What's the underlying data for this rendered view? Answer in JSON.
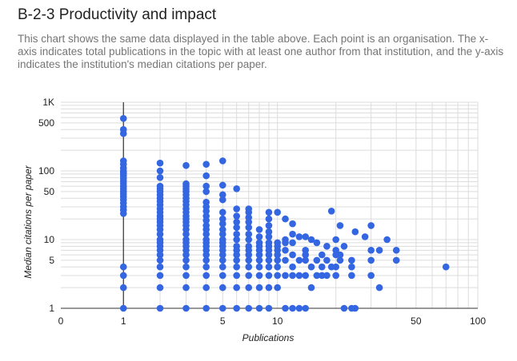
{
  "title": "B-2-3 Productivity and impact",
  "description": "This chart shows the same data displayed in the table above. Each point is an organisation. The x-axis indicates total publications in the topic with at least one author from that institution, and the y-axis indicates the institution's median citations per paper.",
  "chart_data": {
    "type": "scatter",
    "xlabel": "Publications",
    "ylabel": "Median citations per paper",
    "x_scale": "log",
    "y_scale": "log",
    "xlim": [
      0,
      100
    ],
    "ylim": [
      1,
      1000
    ],
    "x_ticks": [
      {
        "value": 0,
        "label": "0"
      },
      {
        "value": 1,
        "label": "1"
      },
      {
        "value": 5,
        "label": "5"
      },
      {
        "value": 10,
        "label": "10"
      },
      {
        "value": 50,
        "label": "50"
      },
      {
        "value": 100,
        "label": "100"
      }
    ],
    "y_ticks": [
      {
        "value": 1,
        "label": "1"
      },
      {
        "value": 5,
        "label": "5"
      },
      {
        "value": 10,
        "label": "10"
      },
      {
        "value": 50,
        "label": "50"
      },
      {
        "value": 100,
        "label": "100"
      },
      {
        "value": 500,
        "label": "500"
      },
      {
        "value": 1000,
        "label": "1K"
      }
    ],
    "grid": true,
    "point_color": "#3366e0",
    "points": [
      [
        1,
        580
      ],
      [
        1,
        400
      ],
      [
        1,
        350
      ],
      [
        1,
        140
      ],
      [
        1,
        125
      ],
      [
        1,
        110
      ],
      [
        1,
        100
      ],
      [
        1,
        95
      ],
      [
        1,
        90
      ],
      [
        1,
        85
      ],
      [
        1,
        78
      ],
      [
        1,
        72
      ],
      [
        1,
        66
      ],
      [
        1,
        60
      ],
      [
        1,
        55
      ],
      [
        1,
        50
      ],
      [
        1,
        46
      ],
      [
        1,
        42
      ],
      [
        1,
        38
      ],
      [
        1,
        34
      ],
      [
        1,
        30
      ],
      [
        1,
        27
      ],
      [
        1,
        24
      ],
      [
        1,
        4
      ],
      [
        1,
        3
      ],
      [
        1,
        2
      ],
      [
        1,
        1
      ],
      [
        2,
        130
      ],
      [
        2,
        100
      ],
      [
        2,
        80
      ],
      [
        2,
        60
      ],
      [
        2,
        55
      ],
      [
        2,
        50
      ],
      [
        2,
        45
      ],
      [
        2,
        40
      ],
      [
        2,
        36
      ],
      [
        2,
        32
      ],
      [
        2,
        28
      ],
      [
        2,
        25
      ],
      [
        2,
        22
      ],
      [
        2,
        20
      ],
      [
        2,
        18
      ],
      [
        2,
        16
      ],
      [
        2,
        14
      ],
      [
        2,
        12
      ],
      [
        2,
        10
      ],
      [
        2,
        9
      ],
      [
        2,
        8
      ],
      [
        2,
        7
      ],
      [
        2,
        6
      ],
      [
        2,
        5
      ],
      [
        2,
        4
      ],
      [
        2,
        3
      ],
      [
        2,
        2
      ],
      [
        2,
        1
      ],
      [
        3,
        120
      ],
      [
        3,
        65
      ],
      [
        3,
        60
      ],
      [
        3,
        55
      ],
      [
        3,
        50
      ],
      [
        3,
        45
      ],
      [
        3,
        40
      ],
      [
        3,
        36
      ],
      [
        3,
        32
      ],
      [
        3,
        28
      ],
      [
        3,
        25
      ],
      [
        3,
        22
      ],
      [
        3,
        20
      ],
      [
        3,
        18
      ],
      [
        3,
        16
      ],
      [
        3,
        14
      ],
      [
        3,
        12
      ],
      [
        3,
        10
      ],
      [
        3,
        9
      ],
      [
        3,
        8
      ],
      [
        3,
        7
      ],
      [
        3,
        6
      ],
      [
        3,
        5
      ],
      [
        3,
        4
      ],
      [
        3,
        3
      ],
      [
        3,
        2
      ],
      [
        3,
        1
      ],
      [
        4,
        125
      ],
      [
        4,
        85
      ],
      [
        4,
        60
      ],
      [
        4,
        50
      ],
      [
        4,
        35
      ],
      [
        4,
        30
      ],
      [
        4,
        26
      ],
      [
        4,
        22
      ],
      [
        4,
        19
      ],
      [
        4,
        16
      ],
      [
        4,
        14
      ],
      [
        4,
        12
      ],
      [
        4,
        10
      ],
      [
        4,
        9
      ],
      [
        4,
        8
      ],
      [
        4,
        7
      ],
      [
        4,
        6
      ],
      [
        4,
        5
      ],
      [
        4,
        4
      ],
      [
        4,
        3
      ],
      [
        4,
        2
      ],
      [
        4,
        1
      ],
      [
        5,
        140
      ],
      [
        5,
        62
      ],
      [
        5,
        45
      ],
      [
        5,
        38
      ],
      [
        5,
        25
      ],
      [
        5,
        20
      ],
      [
        5,
        17
      ],
      [
        5,
        14
      ],
      [
        5,
        12
      ],
      [
        5,
        10
      ],
      [
        5,
        9
      ],
      [
        5,
        8
      ],
      [
        5,
        7
      ],
      [
        5,
        6
      ],
      [
        5,
        5
      ],
      [
        5,
        4
      ],
      [
        5,
        3
      ],
      [
        5,
        2
      ],
      [
        5,
        1
      ],
      [
        6,
        55
      ],
      [
        6,
        28
      ],
      [
        6,
        22
      ],
      [
        6,
        18
      ],
      [
        6,
        15
      ],
      [
        6,
        12
      ],
      [
        6,
        10
      ],
      [
        6,
        8
      ],
      [
        6,
        7
      ],
      [
        6,
        6
      ],
      [
        6,
        5
      ],
      [
        6,
        4
      ],
      [
        6,
        3
      ],
      [
        6,
        2
      ],
      [
        6,
        1
      ],
      [
        7,
        28
      ],
      [
        7,
        25
      ],
      [
        7,
        21
      ],
      [
        7,
        18
      ],
      [
        7,
        15
      ],
      [
        7,
        12
      ],
      [
        7,
        10
      ],
      [
        7,
        8
      ],
      [
        7,
        7
      ],
      [
        7,
        6
      ],
      [
        7,
        5
      ],
      [
        7,
        4
      ],
      [
        7,
        3
      ],
      [
        7,
        2
      ],
      [
        7,
        1
      ],
      [
        8,
        14
      ],
      [
        8,
        11
      ],
      [
        8,
        9
      ],
      [
        8,
        8
      ],
      [
        8,
        7
      ],
      [
        8,
        6
      ],
      [
        8,
        5
      ],
      [
        8,
        4
      ],
      [
        8,
        3
      ],
      [
        8,
        2
      ],
      [
        8,
        1
      ],
      [
        9,
        25
      ],
      [
        9,
        20
      ],
      [
        9,
        16
      ],
      [
        9,
        13
      ],
      [
        9,
        11
      ],
      [
        9,
        9
      ],
      [
        9,
        8
      ],
      [
        9,
        7
      ],
      [
        9,
        6
      ],
      [
        9,
        5
      ],
      [
        9,
        4
      ],
      [
        9,
        3
      ],
      [
        9,
        2
      ],
      [
        9,
        1
      ],
      [
        10,
        25
      ],
      [
        10,
        9
      ],
      [
        10,
        8
      ],
      [
        10,
        7
      ],
      [
        10,
        6
      ],
      [
        10,
        5
      ],
      [
        10,
        4
      ],
      [
        10,
        3
      ],
      [
        10,
        2
      ],
      [
        11,
        20
      ],
      [
        11,
        10
      ],
      [
        11,
        9
      ],
      [
        11,
        7
      ],
      [
        11,
        5
      ],
      [
        11,
        3
      ],
      [
        11,
        1
      ],
      [
        12,
        17
      ],
      [
        12,
        12
      ],
      [
        12,
        9
      ],
      [
        12,
        6
      ],
      [
        12,
        4
      ],
      [
        12,
        3
      ],
      [
        12,
        1
      ],
      [
        13,
        11
      ],
      [
        13,
        5
      ],
      [
        13,
        3
      ],
      [
        13,
        1
      ],
      [
        14,
        11
      ],
      [
        14,
        7
      ],
      [
        14,
        6
      ],
      [
        14,
        5
      ],
      [
        14,
        3
      ],
      [
        14,
        1
      ],
      [
        15,
        10
      ],
      [
        15,
        4
      ],
      [
        15,
        2
      ],
      [
        16,
        9
      ],
      [
        16,
        5
      ],
      [
        16,
        3
      ],
      [
        17,
        6
      ],
      [
        17,
        4
      ],
      [
        17,
        3
      ],
      [
        18,
        8
      ],
      [
        18,
        5
      ],
      [
        18,
        3
      ],
      [
        19,
        26
      ],
      [
        19,
        4
      ],
      [
        20,
        10
      ],
      [
        20,
        7
      ],
      [
        20,
        6
      ],
      [
        20,
        4
      ],
      [
        20,
        3
      ],
      [
        21,
        16
      ],
      [
        21,
        6
      ],
      [
        21,
        5
      ],
      [
        22,
        8
      ],
      [
        22,
        1
      ],
      [
        24,
        5
      ],
      [
        24,
        4
      ],
      [
        24,
        3
      ],
      [
        24,
        1
      ],
      [
        25,
        13
      ],
      [
        25,
        1
      ],
      [
        28,
        11
      ],
      [
        30,
        16
      ],
      [
        30,
        7
      ],
      [
        30,
        5
      ],
      [
        30,
        3
      ],
      [
        33,
        7
      ],
      [
        33,
        2
      ],
      [
        36,
        10
      ],
      [
        40,
        7
      ],
      [
        40,
        5
      ],
      [
        70,
        4
      ]
    ]
  }
}
